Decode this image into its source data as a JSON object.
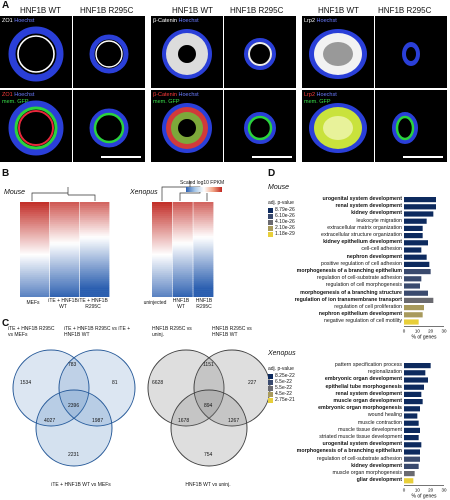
{
  "panels": {
    "a": "A",
    "b": "B",
    "c": "C",
    "d": "D"
  },
  "panel_a": {
    "col_headers": [
      "HNF1B WT",
      "HNF1B R295C",
      "HNF1B WT",
      "HNF1B R295C",
      "HNF1B WT",
      "HNF1B R295C"
    ],
    "row_labels_top": [
      {
        "marker": "ZO1",
        "stain": "Hoechst"
      },
      {
        "marker": "β-Catenin",
        "stain": "Hoechst"
      },
      {
        "marker": "Lrp2",
        "stain": "Hoechst"
      }
    ],
    "row_labels_bottom": [
      {
        "marker": "ZO1",
        "stain": "Hoechst",
        "gfp": "mem. GFP"
      },
      {
        "marker": "β-Catenin",
        "stain": "Hoechst",
        "gfp": "mem. GFP"
      },
      {
        "marker": "Lrp2",
        "stain": "Hoechst",
        "gfp": "mem. GFP"
      }
    ]
  },
  "panel_b": {
    "mouse_title": "Mouse",
    "xenopus_title": "Xenopus",
    "colorscale_label": "Scaled log10 FPKM",
    "mouse_cols": [
      "MEFs",
      "iTE + HNF1B WT",
      "iTE + HNF1B R295C"
    ],
    "xenopus_cols": [
      "uninjected",
      "HNF1B WT",
      "HNF1B R295C"
    ]
  },
  "panel_c": {
    "mouse_sets": [
      "iTE + HNF1B R295C vs MEFs",
      "iTE + HNF1B R295C vs iTE + HNF1B WT",
      "iTE + HNF1B WT vs MEFs"
    ],
    "mouse_counts": {
      "a_only": "1534",
      "ab": "783",
      "b_only": "81",
      "ac": "4027",
      "abc": "2396",
      "bc": "1987",
      "c_only": "2231"
    },
    "xenopus_sets": [
      "HNF1B R295C vs uninj.",
      "HNF1B R295C vs HNF1B WT",
      "HNF1B WT vs uninj."
    ],
    "xenopus_counts": {
      "a_only": "6628",
      "ab": "1151",
      "b_only": "227",
      "ac": "1678",
      "abc": "894",
      "bc": "1267",
      "c_only": "754"
    }
  },
  "panel_d": {
    "mouse_title": "Mouse",
    "xenopus_title": "Xenopus",
    "legend_title": "adj. p-value",
    "mouse_legend": [
      "8.79e-26",
      "6.10e-26",
      "4.10e-26",
      "2.10e-26",
      "1.18e-29"
    ],
    "xenopus_legend": [
      "8.25e-22",
      "6.5e-22",
      "5.5e-22",
      "4.5e-22",
      "2.75e-21"
    ],
    "legend_colors": [
      "#0d2a5e",
      "#3a4a6e",
      "#6a6a70",
      "#a89a5c",
      "#e8cf3a"
    ],
    "xaxis_label": "% of genes",
    "mouse_ticks": [
      "0",
      "10",
      "20",
      "30"
    ],
    "xenopus_ticks": [
      "0",
      "10",
      "20",
      "30"
    ]
  },
  "chart_data": [
    {
      "type": "bar",
      "title": "Mouse",
      "xlabel": "% of genes",
      "categories": [
        "urogenital system development",
        "renal system development",
        "kidney development",
        "leukocyte migration",
        "extracellular matrix organization",
        "extracellular structure organization",
        "kidney epithelium development",
        "cell-cell adhesion",
        "nephron development",
        "positive regulation of cell adhesion",
        "morphogenesis of a branching epithelium",
        "regulation of cell-substrate adhesion",
        "regulation of cell morphogenesis",
        "morphogenesis of a branching structure",
        "regulation of ion transmembrane transport",
        "regulation of cell proliferation",
        "nephron epithelium development",
        "negative regulation of cell motility"
      ],
      "bold": [
        true,
        true,
        true,
        false,
        false,
        false,
        true,
        false,
        true,
        false,
        true,
        false,
        false,
        true,
        true,
        false,
        true,
        false
      ],
      "values": [
        24,
        24,
        22,
        17,
        14,
        14,
        18,
        13,
        17,
        19,
        20,
        13,
        12,
        18,
        22,
        15,
        14,
        11
      ],
      "color_rank": [
        0,
        0,
        0,
        0,
        0,
        0,
        0,
        0,
        0,
        0,
        1,
        1,
        1,
        1,
        2,
        3,
        3,
        4
      ],
      "xlim": [
        0,
        30
      ]
    },
    {
      "type": "bar",
      "title": "Xenopus",
      "xlabel": "% of genes",
      "categories": [
        "pattern specification process",
        "regionalization",
        "embryonic organ development",
        "epithelial tube morphogenesis",
        "renal system development",
        "muscle organ development",
        "embryonic organ morphogenesis",
        "wound healing",
        "muscle contraction",
        "muscle tissue development",
        "striated muscle tissue development",
        "urogenital system development",
        "morphogenesis of a branching epithelium",
        "regulation of cell-substrate adhesion",
        "kidney development",
        "muscle organ morphogenesis",
        "gliar development"
      ],
      "bold": [
        false,
        false,
        true,
        true,
        true,
        true,
        true,
        false,
        false,
        false,
        false,
        true,
        true,
        false,
        true,
        false,
        true
      ],
      "values": [
        20,
        16,
        18,
        15,
        13,
        14,
        12,
        10,
        11,
        12,
        11,
        13,
        12,
        12,
        11,
        8,
        7
      ],
      "color_rank": [
        0,
        0,
        0,
        0,
        0,
        0,
        0,
        0,
        0,
        0,
        0,
        0,
        0,
        1,
        1,
        2,
        4
      ],
      "xlim": [
        0,
        30
      ]
    }
  ]
}
